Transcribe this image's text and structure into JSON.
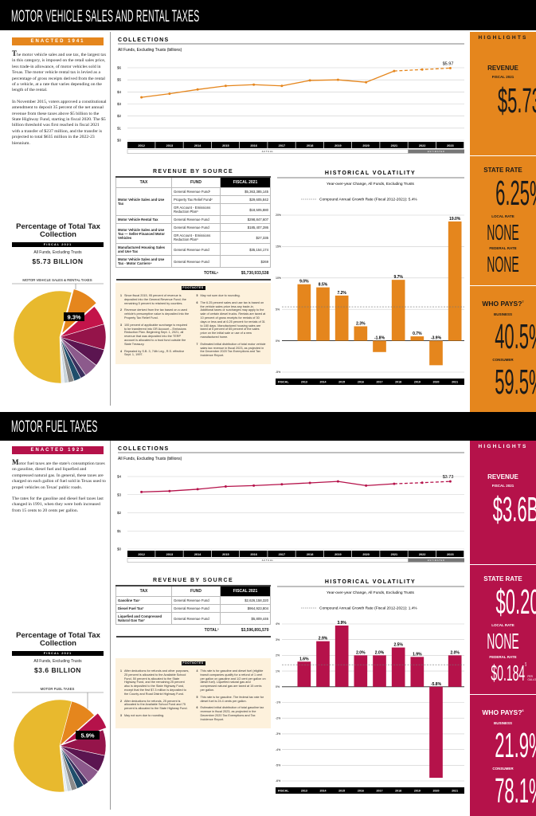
{
  "sections": [
    {
      "title": "MOTOR VEHICLE SALES AND RENTAL TAXES",
      "accent": "#E5861D",
      "highlight_text_color": "#1a1a1a",
      "enacted": "ENACTED 1941",
      "intro": [
        "The motor vehicle sales and use tax, the largest tax in this category, is imposed on the retail sales price, less trade-in allowance, of motor vehicles sold in Texas. The motor vehicle rental tax is levied as a percentage of gross receipts derived from the rental of a vehicle, at a rate that varies depending on the length of the rental.",
        "In November 2015, voters approved a constitutional amendment to deposit 35 percent of the net annual revenue from these taxes above $5 billion to the State Highway Fund, starting in fiscal 2020. The $5 billion threshold was first reached in fiscal 2021 with a transfer of $237 million, and the transfer is projected to total $635 million in the 2022-23 biennium."
      ],
      "pie": {
        "title": "Percentage of Total Tax Collection",
        "fiscal": "FISCAL 2021",
        "sub": "All Funds, Excluding Trusts",
        "amount": "$5.73 BILLION",
        "label": "MOTOR VEHICLE SALES & RENTAL TAXES",
        "highlight_label": "9.3%"
      },
      "collections": {
        "title": "COLLECTIONS",
        "subtitle": "All Funds, Excluding Trusts (billions)",
        "end_label": "$5.97",
        "actual_label": "ACTUAL",
        "estimated_label": "ESTIMATED"
      },
      "revenue": {
        "title": "REVENUE BY SOURCE",
        "headers": [
          "TAX",
          "FUND",
          "FISCAL 2021"
        ],
        "rows": [
          {
            "tax": "Motor Vehicle Sales and Use Tax",
            "funds": [
              {
                "fund": "General Revenue Fund¹",
                "amount": "$5,363,385,145"
              },
              {
                "fund": "Property Tax Relief Fund²",
                "amount": "$29,605,842"
              },
              {
                "fund": "GR Account - Emissions Reduction Plan³",
                "amount": "$18,505,880"
              }
            ]
          },
          {
            "tax": "Motor Vehicle Rental Tax",
            "funds": [
              {
                "fund": "General Revenue Fund",
                "amount": "$298,847,607"
              }
            ]
          },
          {
            "tax": "Motor Vehicle Sales and Use Tax — Seller-Financed Motor Vehicles",
            "funds": [
              {
                "fund": "General Revenue Fund",
                "amount": "$185,407,286"
              },
              {
                "fund": "GR Account - Emissions Reduction Plan³",
                "amount": "$27,335"
              }
            ]
          },
          {
            "tax": "Manufactured Housing Sales and Use Tax",
            "funds": [
              {
                "fund": "General Revenue Fund",
                "amount": "$35,154,174"
              }
            ]
          },
          {
            "tax": "Motor Vehicle Sales and Use Tax - Motor Carriers⁴",
            "funds": [
              {
                "fund": "General Revenue Fund",
                "amount": "$269"
              }
            ]
          }
        ],
        "total_label": "TOTAL⁵",
        "total": "$5,730,933,538",
        "footnotes_title": "FOOTNOTES",
        "footnotes_left": [
          {
            "n": "1",
            "text": "Since fiscal 2015, 95 percent of revenue is deposited into the General Revenue Fund; the remaining 5 percent is retained by counties."
          },
          {
            "n": "2",
            "text": "Revenue derived from the tax based on a used vehicle's presumptive value is deposited into the Property Tax Relief Fund."
          },
          {
            "n": "3",
            "text": "100 percent of applicable surcharge is required to be transferred into GR Account – Emissions Reduction Plan. Beginning Sept. 1, 2021, all revenue that was deposited into the TERP account is allocated to a trust fund outside the State Treasury."
          },
          {
            "n": "4",
            "text": "Repealed by S.B. 3, 74th Leg., R.S. effective Sept. 1, 1997."
          }
        ],
        "footnotes_right": [
          {
            "n": "5",
            "text": "May not sum due to rounding."
          },
          {
            "n": "6",
            "text": "The 6.25 percent sales and use tax is based on the vehicle sales price less any trade-in. Additional taxes or surcharges may apply to the sale of certain diesel trucks. Rentals are taxed at 10 percent of gross receipts for rentals of 30 days or less and at 6.25 percent for rentals of 31 to 180 days. Manufactured housing sales are taxed at 5 percent of 65 percent of the sales price on the initial sale or use of a new manufactured home."
          },
          {
            "n": "7",
            "text": "Estimated initial distribution of total motor vehicle sales tax revenue in fiscal 2023, as projected in the December 2020 Tax Exemptions and Tax Incidence Report."
          }
        ]
      },
      "volatility": {
        "title": "HISTORICAL VOLATILITY",
        "subtitle": "Year-over-year Change, All Funds, Excluding Trusts",
        "legend": "Compound Annual Growth Rate (Fiscal 2012-2021): 5.4%",
        "fiscal_label": "FISCAL"
      },
      "highlights": {
        "title": "HIGHLIGHTS",
        "revenue_label": "REVENUE",
        "revenue_fiscal": "FISCAL 2021",
        "revenue_value": "$5.73B",
        "state_rate_label": "STATE RATE",
        "state_rate_value": "6.25%",
        "state_rate_sup": "6",
        "state_rate_unit": "",
        "local_rate_label": "LOCAL RATE",
        "local_rate_value": "NONE",
        "federal_rate_label": "FEDERAL RATE",
        "federal_rate_value": "NONE",
        "federal_rate_sup": "",
        "federal_rate_unit": "",
        "who_pays_label": "WHO PAYS?",
        "who_pays_sup": "7",
        "business_label": "BUSINESS",
        "business_value": "40.5%",
        "consumer_label": "CONSUMER",
        "consumer_value": "59.5%"
      }
    },
    {
      "title": "MOTOR FUEL TAXES",
      "accent": "#B5124A",
      "highlight_text_color": "#ffffff",
      "enacted": "ENACTED 1923",
      "intro": [
        "Motor fuel taxes are the state's consumption taxes on gasoline, diesel fuel and liquefied and compressed natural gas. In general, these taxes are charged on each gallon of fuel sold in Texas used to propel vehicles on Texas' public roads.",
        "The rates for the gasoline and diesel fuel taxes last changed in 1991, when they were both increased from 15 cents to 20 cents per gallon."
      ],
      "pie": {
        "title": "Percentage of Total Tax Collection",
        "fiscal": "FISCAL 2021",
        "sub": "All Funds, Excluding Trusts",
        "amount": "$3.6 BILLION",
        "label": "MOTOR FUEL TAXES",
        "highlight_label": "5.9%"
      },
      "collections": {
        "title": "COLLECTIONS",
        "subtitle": "All Funds, Excluding Trusts (billions)",
        "end_label": "$3.73",
        "actual_label": "ACTUAL",
        "estimated_label": "ESTIMATED"
      },
      "revenue": {
        "title": "REVENUE BY SOURCE",
        "headers": [
          "TAX",
          "FUND",
          "FISCAL 2021"
        ],
        "rows": [
          {
            "tax": "Gasoline Tax¹",
            "funds": [
              {
                "fund": "General Revenue Fund",
                "amount": "$2,626,158,320"
              }
            ]
          },
          {
            "tax": "Diesel Fuel Tax²",
            "funds": [
              {
                "fund": "General Revenue Fund",
                "amount": "$964,923,804"
              }
            ]
          },
          {
            "tax": "Liquefied and Compressed Natural Gas Tax²",
            "funds": [
              {
                "fund": "General Revenue Fund",
                "amount": "$5,809,446"
              }
            ]
          }
        ],
        "total_label": "TOTAL³",
        "total": "$3,596,891,570",
        "footnotes_title": "FOOTNOTES",
        "footnotes_left": [
          {
            "n": "1",
            "text": "After deductions for refunds and other purposes, 25 percent is allocated to the Available School Fund, 50 percent is allocated to the State Highway Fund, and the remaining 25 percent also is deposited to the State Highway Fund, except that the first $7.3 million is deposited to the County and Road District Highway Fund."
          },
          {
            "n": "2",
            "text": "After deductions for refunds, 25 percent is allocated to the Available School Fund and 75 percent is allocated to the State Highway Fund."
          },
          {
            "n": "3",
            "text": "May not sum due to rounding."
          }
        ],
        "footnotes_right": [
          {
            "n": "4",
            "text": "This rate is for gasoline and diesel fuel (eligible transit companies qualify for a refund of 1 cent per gallon on gasoline and 1/2 cent per gallon on diesel fuel). Liquefied natural gas and compressed natural gas are taxed at 15 cents per gallon."
          },
          {
            "n": "5",
            "text": "This rate is for gasoline. The federal tax rate for diesel fuel is 24.4 cents per gallon."
          },
          {
            "n": "6",
            "text": "Estimated initial distribution of total gasoline tax revenue in fiscal 2023, as projected in the December 2020 Tax Exemptions and Tax Incidence Report."
          }
        ]
      },
      "volatility": {
        "title": "HISTORICAL VOLATILITY",
        "subtitle": "Year-over-year Change, All Funds, Excluding Trusts",
        "legend": "Compound Annual Growth Rate (Fiscal 2012-2021): 1.4%",
        "fiscal_label": "FISCAL"
      },
      "highlights": {
        "title": "HIGHLIGHTS",
        "revenue_label": "REVENUE",
        "revenue_fiscal": "FISCAL 2021",
        "revenue_value": "$3.6B",
        "state_rate_label": "STATE RATE",
        "state_rate_value": "$0.20",
        "state_rate_sup": "4",
        "state_rate_unit": "PER GALLON",
        "local_rate_label": "LOCAL RATE",
        "local_rate_value": "NONE",
        "federal_rate_label": "FEDERAL RATE",
        "federal_rate_value": "$0.184",
        "federal_rate_sup": "5",
        "federal_rate_unit": "PER GALLON",
        "who_pays_label": "WHO PAYS?",
        "who_pays_sup": "6",
        "business_label": "BUSINESS",
        "business_value": "21.9%",
        "consumer_label": "CONSUMER",
        "consumer_value": "78.1%"
      }
    }
  ],
  "chart_data": [
    {
      "id": "mv-collections",
      "type": "line",
      "title": "COLLECTIONS",
      "ylabel": "All Funds, Excluding Trusts (billions)",
      "x": [
        "2012",
        "2013",
        "2014",
        "2015",
        "2016",
        "2017",
        "2018",
        "2019",
        "2020",
        "2021",
        "2022",
        "2023"
      ],
      "values": [
        3.55,
        3.85,
        4.2,
        4.5,
        4.6,
        4.5,
        4.95,
        5.0,
        4.8,
        5.73,
        5.85,
        5.97
      ],
      "estimated_from_index": 9,
      "ylim": [
        0,
        6
      ],
      "yticks": [
        "$0",
        "$1",
        "$2",
        "$3",
        "$4",
        "$5",
        "$6"
      ],
      "color": "#E5861D"
    },
    {
      "id": "mv-volatility",
      "type": "bar",
      "title": "HISTORICAL VOLATILITY",
      "categories": [
        "2013",
        "2014",
        "2015",
        "2016",
        "2017",
        "2018",
        "2019",
        "2020",
        "2021"
      ],
      "values": [
        9.0,
        8.5,
        7.2,
        2.3,
        -1.8,
        9.7,
        0.7,
        -3.9,
        19.0
      ],
      "reference_line": 5.4,
      "ylim": [
        -5,
        20
      ],
      "yticks": [
        "-5%",
        "0%",
        "5%",
        "10%",
        "15%",
        "20%"
      ],
      "ytick_values": [
        -5,
        0,
        5,
        10,
        15,
        20
      ],
      "color": "#E5861D"
    },
    {
      "id": "mv-pie",
      "type": "pie",
      "title": "Percentage of Total Tax Collection",
      "highlight_index": 0,
      "values": [
        9.3,
        7.0,
        9.0,
        6.0,
        5.0,
        2.0,
        2.5,
        2.0,
        1.5,
        1.0,
        54.7
      ],
      "colors": [
        "#E5861D",
        "#C3144A",
        "#95144A",
        "#5B1550",
        "#8C5A8C",
        "#3B2F5E",
        "#1F4E6B",
        "#8A8A8A",
        "#C9D4DA",
        "#E8EEF0",
        "#E8B92E"
      ]
    },
    {
      "id": "mf-collections",
      "type": "line",
      "title": "COLLECTIONS",
      "ylabel": "All Funds, Excluding Trusts (billions)",
      "x": [
        "2012",
        "2013",
        "2014",
        "2015",
        "2016",
        "2017",
        "2018",
        "2019",
        "2020",
        "2021",
        "2022",
        "2023"
      ],
      "values": [
        3.15,
        3.2,
        3.3,
        3.45,
        3.5,
        3.57,
        3.65,
        3.73,
        3.5,
        3.6,
        3.66,
        3.73
      ],
      "estimated_from_index": 9,
      "ylim": [
        0,
        4
      ],
      "yticks": [
        "$0",
        "$1",
        "$2",
        "$3",
        "$4"
      ],
      "color": "#B5124A"
    },
    {
      "id": "mf-volatility",
      "type": "bar",
      "title": "HISTORICAL VOLATILITY",
      "categories": [
        "2013",
        "2014",
        "2015",
        "2016",
        "2017",
        "2018",
        "2019",
        "2020",
        "2021"
      ],
      "values": [
        1.6,
        2.9,
        3.9,
        2.0,
        2.0,
        2.5,
        1.9,
        -5.8,
        2.0
      ],
      "reference_line": 1.4,
      "ylim": [
        -6,
        4
      ],
      "yticks": [
        "-6%",
        "-5%",
        "-4%",
        "-3%",
        "-2%",
        "-1%",
        "0%",
        "1%",
        "2%",
        "3%",
        "4%"
      ],
      "ytick_values": [
        -6,
        -5,
        -4,
        -3,
        -2,
        -1,
        0,
        1,
        2,
        3,
        4
      ],
      "color": "#B5124A"
    },
    {
      "id": "mf-pie",
      "type": "pie",
      "title": "Percentage of Total Tax Collection",
      "highlight_index": 1,
      "values": [
        9.3,
        5.9,
        9.0,
        6.0,
        5.0,
        2.0,
        2.5,
        2.0,
        1.5,
        1.0,
        55.8
      ],
      "colors": [
        "#E5861D",
        "#B5124A",
        "#95144A",
        "#5B1550",
        "#8C5A8C",
        "#3B2F5E",
        "#1F4E6B",
        "#8A8A8A",
        "#C9D4DA",
        "#E8EEF0",
        "#E8B92E"
      ]
    }
  ]
}
